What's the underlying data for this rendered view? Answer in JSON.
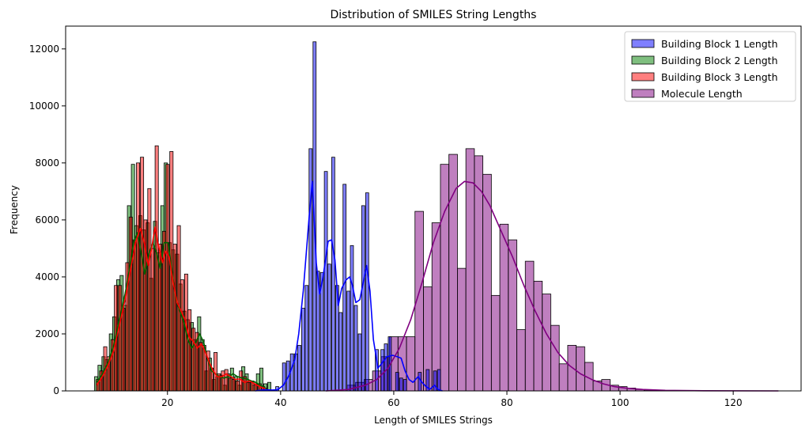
{
  "chart_data": {
    "type": "histogram",
    "title": "Distribution of SMILES String Lengths",
    "xlabel": "Length of SMILES Strings",
    "ylabel": "Frequency",
    "xlim": [
      2,
      132
    ],
    "ylim": [
      0,
      12800
    ],
    "x_ticks": [
      20,
      40,
      60,
      80,
      100,
      120
    ],
    "y_ticks": [
      0,
      2000,
      4000,
      6000,
      8000,
      10000,
      12000
    ],
    "legend_position": "top-right",
    "series": [
      {
        "name": "Building Block 1 Length",
        "color": "#0000ff",
        "bin_width": 0.55,
        "x": [
          36.5,
          37.2,
          38.0,
          38.7,
          39.4,
          40.0,
          40.6,
          41.3,
          42.0,
          42.7,
          43.3,
          44.0,
          44.6,
          45.3,
          46.0,
          46.6,
          47.3,
          48.0,
          48.6,
          49.3,
          50.0,
          50.6,
          51.3,
          52.0,
          52.6,
          53.3,
          54.0,
          54.6,
          55.3,
          56.0,
          57.0,
          58.0,
          58.6,
          59.3,
          60.0,
          60.6,
          61.3,
          62.0,
          62.6,
          63.3,
          64.0,
          64.6,
          65.3,
          66.0,
          66.6,
          67.3,
          68.0
        ],
        "values": [
          0,
          100,
          0,
          0,
          150,
          0,
          980,
          1050,
          1300,
          1300,
          1600,
          2900,
          3700,
          8500,
          12250,
          4200,
          4150,
          7700,
          4450,
          8200,
          3700,
          2750,
          7250,
          3500,
          5100,
          3000,
          2000,
          6500,
          6950,
          0,
          1450,
          1450,
          1650,
          1900,
          0,
          650,
          450,
          400,
          0,
          0,
          0,
          650,
          0,
          750,
          0,
          700,
          750
        ],
        "kde": [
          [
            35.5,
            0
          ],
          [
            37,
            40
          ],
          [
            38.5,
            30
          ],
          [
            39.5,
            40
          ],
          [
            40.5,
            200
          ],
          [
            41.5,
            550
          ],
          [
            42.5,
            1100
          ],
          [
            43.2,
            2000
          ],
          [
            44,
            3500
          ],
          [
            45,
            6000
          ],
          [
            45.6,
            7350
          ],
          [
            46.3,
            4500
          ],
          [
            46.9,
            3400
          ],
          [
            47.5,
            4000
          ],
          [
            48.4,
            5250
          ],
          [
            49,
            5300
          ],
          [
            49.6,
            4600
          ],
          [
            50.2,
            3000
          ],
          [
            50.8,
            3600
          ],
          [
            51.6,
            3900
          ],
          [
            52.2,
            4000
          ],
          [
            52.7,
            3700
          ],
          [
            53.3,
            3100
          ],
          [
            54,
            3200
          ],
          [
            54.6,
            3800
          ],
          [
            55.2,
            4400
          ],
          [
            55.8,
            3500
          ],
          [
            56.4,
            1800
          ],
          [
            57.2,
            800
          ],
          [
            58,
            1000
          ],
          [
            58.8,
            1200
          ],
          [
            59.8,
            1250
          ],
          [
            60.6,
            1200
          ],
          [
            61.3,
            1150
          ],
          [
            62,
            700
          ],
          [
            62.7,
            400
          ],
          [
            63.4,
            300
          ],
          [
            64.3,
            500
          ],
          [
            65,
            300
          ],
          [
            65.7,
            150
          ],
          [
            66.4,
            60
          ],
          [
            67.2,
            200
          ],
          [
            67.8,
            50
          ],
          [
            68.6,
            0
          ]
        ]
      },
      {
        "name": "Building Block 2 Length",
        "color": "#008000",
        "bin_width": 0.58,
        "x": [
          7.4,
          8.0,
          8.7,
          9.3,
          10.0,
          10.6,
          11.3,
          11.9,
          12.6,
          13.2,
          13.9,
          14.5,
          15.2,
          15.8,
          16.5,
          17.1,
          17.8,
          18.4,
          19.1,
          19.7,
          20.4,
          21.0,
          21.7,
          22.3,
          23.0,
          23.6,
          24.3,
          24.9,
          25.6,
          26.2,
          26.9,
          27.5,
          28.2,
          28.8,
          29.5,
          30.1,
          30.8,
          31.4,
          32.1,
          32.7,
          33.4,
          34.0,
          34.7,
          35.3,
          36.0,
          36.6,
          37.3,
          38.0
        ],
        "values": [
          500,
          900,
          1200,
          1100,
          2000,
          2600,
          3900,
          4050,
          3000,
          6500,
          7950,
          5800,
          6150,
          5650,
          5900,
          3950,
          5950,
          4850,
          6500,
          8000,
          5200,
          4950,
          4800,
          3750,
          2800,
          2500,
          2400,
          1800,
          2600,
          1800,
          700,
          1150,
          400,
          500,
          550,
          200,
          600,
          800,
          500,
          200,
          850,
          600,
          300,
          200,
          600,
          800,
          250,
          300
        ]
      },
      {
        "name": "Building Block 3 Length",
        "color": "#ff0000",
        "bin_width": 0.58,
        "x": [
          7.7,
          8.3,
          9.0,
          9.6,
          10.3,
          10.9,
          11.6,
          12.2,
          12.9,
          13.5,
          14.2,
          14.8,
          15.5,
          16.1,
          16.8,
          17.4,
          18.1,
          18.7,
          19.4,
          20.0,
          20.7,
          21.3,
          22.0,
          22.6,
          23.3,
          23.9,
          24.6,
          25.2,
          25.9,
          26.5,
          27.2,
          27.8,
          28.5,
          29.1,
          29.8,
          30.4,
          31.1,
          31.7,
          32.4,
          33.0,
          33.7,
          34.3,
          35.0,
          35.6,
          36.3,
          36.9
        ],
        "values": [
          400,
          700,
          1550,
          1200,
          1800,
          3700,
          3700,
          2900,
          4500,
          6100,
          5300,
          8000,
          8200,
          6000,
          7100,
          5000,
          8600,
          5150,
          5600,
          7950,
          8400,
          5150,
          5800,
          3900,
          4100,
          2850,
          2200,
          2050,
          1700,
          1600,
          1400,
          800,
          1350,
          600,
          700,
          750,
          450,
          400,
          350,
          700,
          500,
          300,
          350,
          250,
          250,
          150
        ],
        "kde": [
          [
            7.5,
            200
          ],
          [
            8.5,
            500
          ],
          [
            9.5,
            900
          ],
          [
            10.5,
            1400
          ],
          [
            11.5,
            2300
          ],
          [
            12.5,
            3200
          ],
          [
            13.5,
            4300
          ],
          [
            14.5,
            5300
          ],
          [
            15.2,
            5700
          ],
          [
            15.9,
            5200
          ],
          [
            16.6,
            4400
          ],
          [
            17.2,
            5000
          ],
          [
            17.8,
            5750
          ],
          [
            18.4,
            5100
          ],
          [
            19.1,
            4500
          ],
          [
            19.7,
            4900
          ],
          [
            20.3,
            4700
          ],
          [
            21.0,
            3800
          ],
          [
            21.7,
            3100
          ],
          [
            22.4,
            2800
          ],
          [
            23.1,
            2500
          ],
          [
            23.8,
            1900
          ],
          [
            24.5,
            1750
          ],
          [
            25.3,
            1500
          ],
          [
            26.0,
            1650
          ],
          [
            26.7,
            1350
          ],
          [
            27.4,
            1000
          ],
          [
            28.1,
            700
          ],
          [
            28.8,
            500
          ],
          [
            29.6,
            500
          ],
          [
            30.4,
            600
          ],
          [
            31.2,
            500
          ],
          [
            32,
            400
          ],
          [
            32.8,
            420
          ],
          [
            33.6,
            300
          ],
          [
            34.5,
            350
          ],
          [
            35.4,
            250
          ],
          [
            36.3,
            150
          ],
          [
            37.3,
            80
          ]
        ]
      },
      {
        "name": "Molecule Length",
        "color": "#800080",
        "bin_width": 1.5,
        "x": [
          52.5,
          54,
          55.5,
          57,
          58.5,
          60,
          61.5,
          63,
          64.5,
          66,
          67.5,
          69,
          70.5,
          72,
          73.5,
          75,
          76.5,
          78,
          79.5,
          81,
          82.5,
          84,
          85.5,
          87,
          88.5,
          90,
          91.5,
          93,
          94.5,
          96,
          97.5,
          99,
          100.5,
          102,
          103.5,
          105,
          106.5,
          108,
          109.5,
          111,
          112.5,
          114,
          115.5,
          117,
          118.5,
          120,
          121.5,
          123,
          124.5,
          126,
          127.5
        ],
        "values": [
          200,
          300,
          400,
          700,
          1200,
          1900,
          1900,
          1900,
          6300,
          3650,
          5900,
          7950,
          8300,
          4300,
          8500,
          8250,
          7600,
          3350,
          5850,
          5300,
          2150,
          4550,
          3850,
          3400,
          2300,
          950,
          1600,
          1550,
          1000,
          350,
          400,
          200,
          150,
          100,
          50,
          30,
          20,
          10,
          10,
          5,
          5,
          5,
          0,
          0,
          0,
          0,
          0,
          0,
          0,
          0,
          0
        ],
        "kde": [
          [
            48,
            0
          ],
          [
            52,
            50
          ],
          [
            55,
            200
          ],
          [
            57,
            400
          ],
          [
            59,
            800
          ],
          [
            61,
            1500
          ],
          [
            63,
            2500
          ],
          [
            65,
            3800
          ],
          [
            67,
            5200
          ],
          [
            69,
            6300
          ],
          [
            71,
            7100
          ],
          [
            72.5,
            7350
          ],
          [
            74,
            7300
          ],
          [
            75.5,
            7000
          ],
          [
            77,
            6500
          ],
          [
            79,
            5600
          ],
          [
            81,
            4700
          ],
          [
            83,
            3700
          ],
          [
            85,
            2800
          ],
          [
            87,
            2000
          ],
          [
            89,
            1350
          ],
          [
            91,
            900
          ],
          [
            93,
            600
          ],
          [
            95,
            400
          ],
          [
            97,
            250
          ],
          [
            99,
            150
          ],
          [
            101,
            100
          ],
          [
            104,
            50
          ],
          [
            108,
            20
          ],
          [
            115,
            5
          ],
          [
            128,
            0
          ]
        ]
      }
    ],
    "extra_kde": [
      {
        "series": "Building Block 2 Length",
        "color": "#006400",
        "points": [
          [
            7.5,
            300
          ],
          [
            8.5,
            600
          ],
          [
            9.5,
            1000
          ],
          [
            10.5,
            1600
          ],
          [
            11.5,
            2500
          ],
          [
            12.5,
            3400
          ],
          [
            13.3,
            4300
          ],
          [
            14.0,
            5200
          ],
          [
            14.7,
            5550
          ],
          [
            15.4,
            4800
          ],
          [
            16.0,
            4100
          ],
          [
            16.7,
            4800
          ],
          [
            17.4,
            5200
          ],
          [
            18.0,
            4900
          ],
          [
            18.7,
            4300
          ],
          [
            19.4,
            5200
          ],
          [
            20.1,
            5200
          ],
          [
            20.8,
            4200
          ],
          [
            21.5,
            3200
          ],
          [
            22.2,
            2800
          ],
          [
            22.9,
            2400
          ],
          [
            23.6,
            1800
          ],
          [
            24.3,
            1500
          ],
          [
            25.0,
            1700
          ],
          [
            25.7,
            2000
          ],
          [
            26.4,
            1700
          ],
          [
            27.1,
            1100
          ],
          [
            27.8,
            700
          ],
          [
            28.5,
            600
          ],
          [
            29.2,
            500
          ],
          [
            30.0,
            450
          ],
          [
            30.8,
            500
          ],
          [
            31.6,
            600
          ],
          [
            32.4,
            500
          ],
          [
            33.2,
            450
          ],
          [
            34.0,
            420
          ],
          [
            34.8,
            350
          ],
          [
            35.6,
            300
          ],
          [
            36.4,
            200
          ],
          [
            37.3,
            100
          ]
        ]
      }
    ]
  }
}
